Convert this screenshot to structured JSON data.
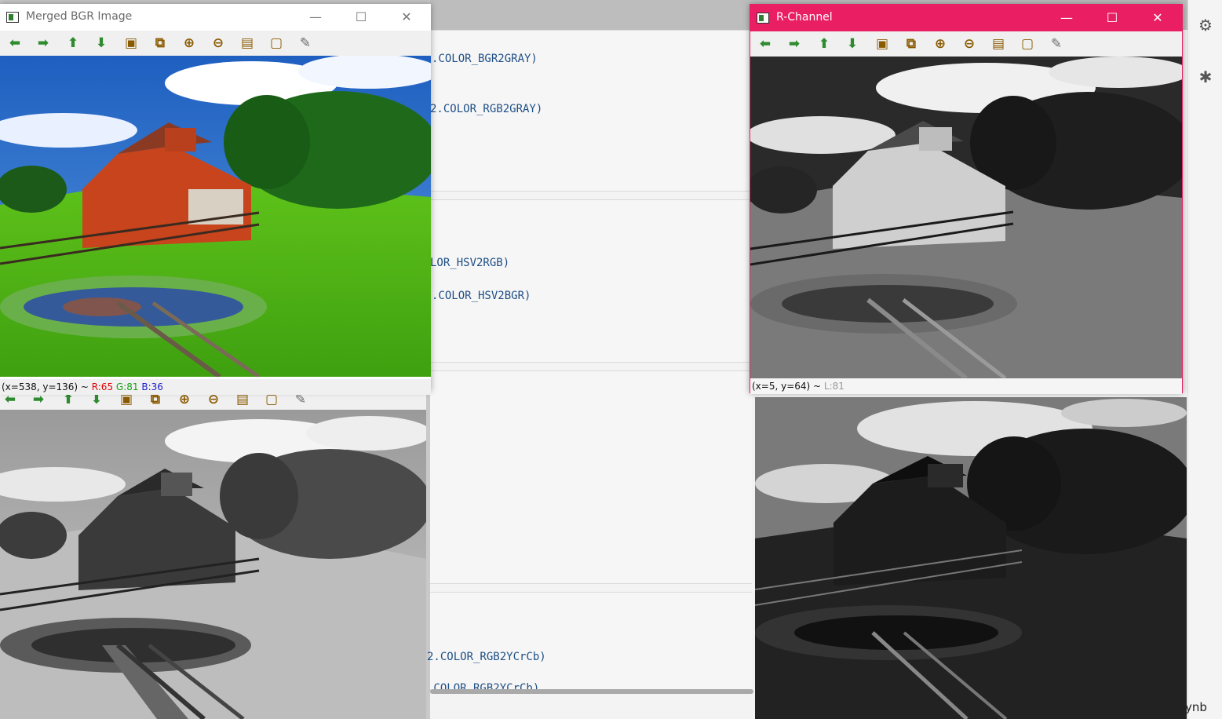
{
  "editor": {
    "code_lines": [
      ".COLOR_BGR2GRAY)",
      "2.COLOR_RGB2GRAY)",
      "LOR_HSV2RGB)",
      ".COLOR_HSV2BGR)",
      "2.COLOR_RGB2YCrCb)",
      ".COLOR_RGB2YCrCb)"
    ],
    "corner_text": "ynb"
  },
  "right_strip": {
    "icons": [
      "gears-icon",
      "bug-icon"
    ]
  },
  "merged_window": {
    "title": "Merged BGR Image",
    "accent": "#ffffff",
    "status_prefix": "(x=538, y=136) ~ ",
    "status_r": "R:65",
    "status_g": "G:81",
    "status_b": "B:36"
  },
  "rchannel_window": {
    "title": "R-Channel",
    "accent": "#e91e63",
    "status_prefix": "(x=5, y=64) ~ ",
    "status_l": "L:81"
  },
  "controls": {
    "minimize": "—",
    "maximize": "☐",
    "close": "✕"
  },
  "toolbar_icons": [
    "pan-left-icon",
    "pan-right-icon",
    "pan-up-icon",
    "pan-down-icon",
    "zoom-fit-icon",
    "zoom-original-icon",
    "zoom-in-icon",
    "zoom-out-icon",
    "save-icon",
    "copy-icon",
    "properties-icon"
  ],
  "colors": {
    "status_r": "#e00000",
    "status_g": "#12a012",
    "status_b": "#1a1ad0"
  }
}
